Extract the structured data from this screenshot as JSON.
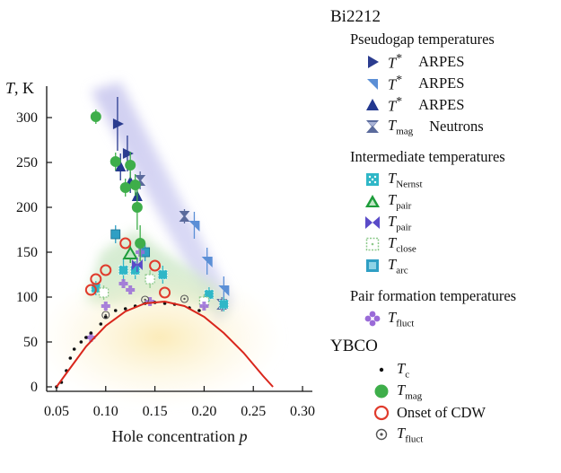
{
  "chart_data": {
    "type": "scatter",
    "xlabel": "Hole concentration p",
    "ylabel": "T, K",
    "xlim": [
      0.04,
      0.31
    ],
    "ylim": [
      -5,
      335
    ],
    "xticks": [
      0.05,
      0.1,
      0.15,
      0.2,
      0.25,
      0.3
    ],
    "xtick_labels": [
      "0.05",
      "0.10",
      "0.15",
      "0.20",
      "0.25",
      "0.30"
    ],
    "yticks": [
      0,
      50,
      100,
      150,
      200,
      250,
      300
    ],
    "ytick_labels": [
      "0",
      "50",
      "100",
      "150",
      "200",
      "250",
      "300"
    ],
    "grid": false,
    "legend_position": "right",
    "series": [
      {
        "name": "T* ARPES (right triangle)",
        "marker": "tri-right",
        "color": "#2b3c8f",
        "points": [
          [
            0.112,
            293,
            30
          ],
          [
            0.122,
            260,
            20
          ]
        ]
      },
      {
        "name": "T* ARPES (down triangle)",
        "marker": "tri-down",
        "color": "#5b8fd6",
        "points": [
          [
            0.19,
            180,
            15
          ],
          [
            0.203,
            140,
            15
          ],
          [
            0.22,
            108,
            15
          ]
        ]
      },
      {
        "name": "T* ARPES (up triangle)",
        "marker": "tri-up",
        "color": "#23388f",
        "points": [
          [
            0.115,
            245,
            15
          ],
          [
            0.125,
            228,
            12
          ],
          [
            0.132,
            212,
            12
          ]
        ]
      },
      {
        "name": "Tmag Neutrons",
        "marker": "hourglass",
        "color": "#5a6a9c",
        "points": [
          [
            0.135,
            230,
            10
          ],
          [
            0.18,
            190,
            8
          ],
          [
            0.218,
            92,
            8
          ]
        ]
      },
      {
        "name": "TNernst",
        "marker": "dotted-square",
        "color": "#2fb7c7",
        "points": [
          [
            0.09,
            110,
            8
          ],
          [
            0.118,
            130,
            12
          ],
          [
            0.13,
            130,
            10
          ],
          [
            0.158,
            125,
            10
          ],
          [
            0.205,
            103,
            8
          ],
          [
            0.22,
            92,
            8
          ]
        ]
      },
      {
        "name": "Tpair (triangle)",
        "marker": "open-tri",
        "color": "#1d9c3a",
        "points": [
          [
            0.125,
            148,
            10
          ]
        ]
      },
      {
        "name": "Tpair (bowtie)",
        "marker": "bowtie",
        "color": "#5a4bc8",
        "points": [
          [
            0.132,
            136,
            8
          ]
        ]
      },
      {
        "name": "Tclose",
        "marker": "dotted-open-square",
        "color": "#8ec98c",
        "points": [
          [
            0.098,
            105,
            8
          ],
          [
            0.145,
            120,
            10
          ],
          [
            0.2,
            95,
            8
          ]
        ]
      },
      {
        "name": "Tarc",
        "marker": "square",
        "color": "#2f9fc4",
        "points": [
          [
            0.11,
            170,
            10
          ],
          [
            0.14,
            150,
            10
          ]
        ]
      },
      {
        "name": "Tfluct (Bi2212)",
        "marker": "plus",
        "color": "#9a6bd8",
        "points": [
          [
            0.085,
            55
          ],
          [
            0.1,
            90
          ],
          [
            0.118,
            115
          ],
          [
            0.125,
            108
          ],
          [
            0.135,
            150
          ],
          [
            0.145,
            95
          ],
          [
            0.2,
            90
          ]
        ]
      },
      {
        "name": "Tc",
        "marker": "dot",
        "color": "#111111",
        "points": [
          [
            0.05,
            0
          ],
          [
            0.055,
            5
          ],
          [
            0.06,
            18
          ],
          [
            0.064,
            32
          ],
          [
            0.068,
            42
          ],
          [
            0.075,
            50
          ],
          [
            0.08,
            55
          ],
          [
            0.085,
            60
          ],
          [
            0.095,
            70
          ],
          [
            0.1,
            78
          ],
          [
            0.11,
            85
          ],
          [
            0.12,
            87
          ],
          [
            0.13,
            90
          ],
          [
            0.14,
            93
          ],
          [
            0.15,
            94
          ],
          [
            0.16,
            93
          ],
          [
            0.17,
            92
          ],
          [
            0.185,
            88
          ],
          [
            0.195,
            85
          ]
        ]
      },
      {
        "name": "Tmag (YBCO)",
        "marker": "filled-circle",
        "color": "#3eae4a",
        "points": [
          [
            0.09,
            301,
            8
          ],
          [
            0.11,
            251,
            10
          ],
          [
            0.12,
            222,
            10
          ],
          [
            0.125,
            247,
            15
          ],
          [
            0.13,
            225,
            12
          ],
          [
            0.132,
            200,
            25
          ],
          [
            0.135,
            160,
            20
          ]
        ]
      },
      {
        "name": "Onset of CDW",
        "marker": "open-circle",
        "color": "#e03b2c",
        "points": [
          [
            0.085,
            108
          ],
          [
            0.09,
            120
          ],
          [
            0.1,
            130
          ],
          [
            0.12,
            160
          ],
          [
            0.15,
            135
          ],
          [
            0.16,
            105
          ]
        ]
      },
      {
        "name": "Tfluct (YBCO)",
        "marker": "dotted-circle",
        "color": "#555555",
        "points": [
          [
            0.1,
            80
          ],
          [
            0.14,
            97
          ],
          [
            0.18,
            98
          ]
        ]
      },
      {
        "name": "Tc dome",
        "marker": "line",
        "color": "#d9261c",
        "points": [
          [
            0.05,
            0
          ],
          [
            0.06,
            15
          ],
          [
            0.08,
            45
          ],
          [
            0.1,
            68
          ],
          [
            0.12,
            84
          ],
          [
            0.14,
            93
          ],
          [
            0.16,
            95
          ],
          [
            0.18,
            90
          ],
          [
            0.2,
            78
          ],
          [
            0.22,
            60
          ],
          [
            0.24,
            38
          ],
          [
            0.26,
            12
          ],
          [
            0.27,
            0
          ]
        ]
      }
    ]
  },
  "legend": {
    "title_bi2212": "Bi2212",
    "group_pseudogap": "Pseudogap temperatures",
    "group_intermediate": "Intermediate temperatures",
    "group_pair": "Pair formation temperatures",
    "title_ybco": "YBCO",
    "items": {
      "tstar1": {
        "sym": "T",
        "sup": "*",
        "method": "ARPES"
      },
      "tstar2": {
        "sym": "T",
        "sup": "*",
        "method": "ARPES"
      },
      "tstar3": {
        "sym": "T",
        "sup": "*",
        "method": "ARPES"
      },
      "tmag_n": {
        "sym": "T",
        "sub": "mag",
        "method": "Neutrons"
      },
      "tnernst": {
        "sym": "T",
        "sub": "Nernst"
      },
      "tpair1": {
        "sym": "T",
        "sub": "pair"
      },
      "tpair2": {
        "sym": "T",
        "sub": "pair"
      },
      "tclose": {
        "sym": "T",
        "sub": "close"
      },
      "tarc": {
        "sym": "T",
        "sub": "arc"
      },
      "tfluct_b": {
        "sym": "T",
        "sub": "fluct"
      },
      "tc": {
        "sym": "T",
        "sub": "c"
      },
      "tmag_y": {
        "sym": "T",
        "sub": "mag"
      },
      "cdw": {
        "text": "Onset of CDW"
      },
      "tfluct_y": {
        "sym": "T",
        "sub": "fluct"
      }
    }
  }
}
